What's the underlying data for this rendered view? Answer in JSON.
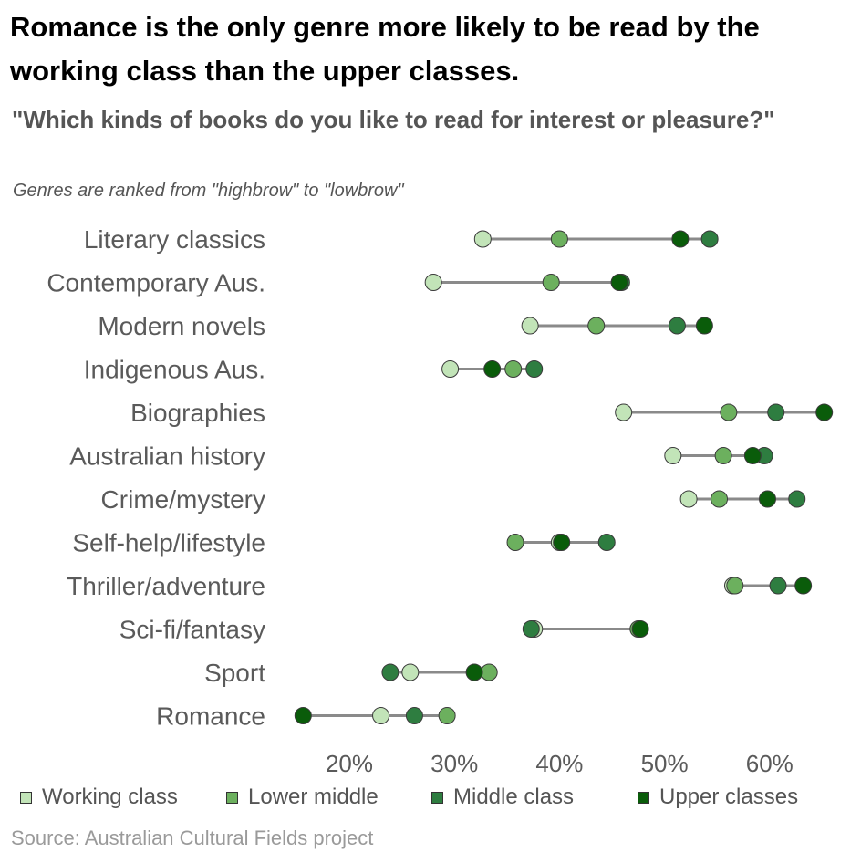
{
  "header": {
    "title": "Romance is the only genre more likely to be read by the working class than the upper classes.",
    "subtitle": "\"Which kinds of books do you like to read for interest or pleasure?\"",
    "note": "Genres are ranked from \"highbrow\"  to \"lowbrow\""
  },
  "chart_data": {
    "type": "dot-plot",
    "x_ticks": [
      "20%",
      "30%",
      "40%",
      "50%",
      "60%"
    ],
    "xlim": [
      10,
      70
    ],
    "grid": false,
    "legend_position": "bottom",
    "series": [
      {
        "name": "Working class",
        "color": "#c2e4b8"
      },
      {
        "name": "Lower middle",
        "color": "#6cb05e"
      },
      {
        "name": "Middle class",
        "color": "#2e7d40"
      },
      {
        "name": "Upper classes",
        "color": "#0a5c0a"
      }
    ],
    "categories": [
      {
        "label": "Literary classics",
        "values": [
          32.7,
          40.0,
          54.3,
          51.5
        ]
      },
      {
        "label": "Contemporary Aus.",
        "values": [
          28.0,
          39.2,
          45.9,
          45.7
        ]
      },
      {
        "label": "Modern novels",
        "values": [
          37.2,
          43.5,
          51.2,
          53.8
        ]
      },
      {
        "label": "Indigenous Aus.",
        "values": [
          29.6,
          35.6,
          37.6,
          33.6
        ]
      },
      {
        "label": "Biographies",
        "values": [
          46.1,
          56.1,
          60.6,
          65.2
        ]
      },
      {
        "label": "Australian history",
        "values": [
          50.8,
          55.6,
          59.5,
          58.4
        ]
      },
      {
        "label": "Crime/mystery",
        "values": [
          52.3,
          55.2,
          62.6,
          59.8
        ]
      },
      {
        "label": "Self-help/lifestyle",
        "values": [
          40.0,
          35.8,
          44.5,
          40.2
        ]
      },
      {
        "label": "Thriller/adventure",
        "values": [
          56.5,
          56.7,
          60.8,
          63.2
        ]
      },
      {
        "label": "Sci-fi/fantasy",
        "values": [
          37.6,
          47.5,
          37.3,
          47.7
        ]
      },
      {
        "label": "Sport",
        "values": [
          25.8,
          33.3,
          23.9,
          31.9
        ]
      },
      {
        "label": "Romance",
        "values": [
          23.0,
          29.3,
          26.2,
          15.6
        ]
      }
    ]
  },
  "footer": {
    "source": "Source: Australian Cultural Fields project"
  }
}
